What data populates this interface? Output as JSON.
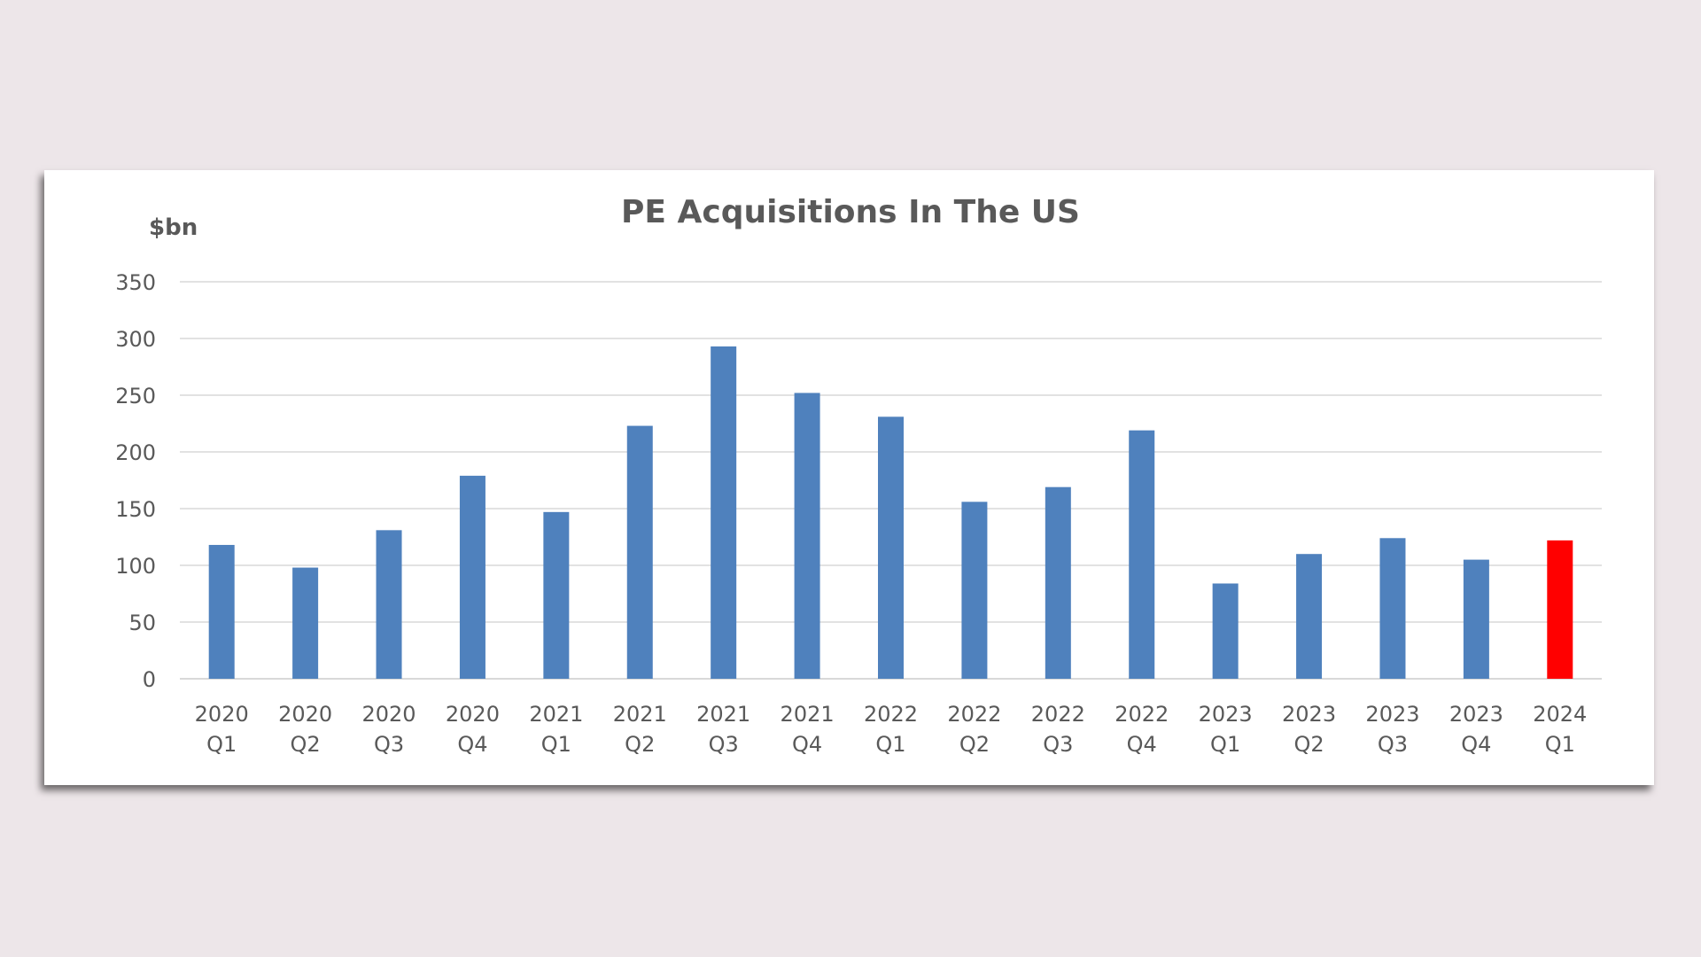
{
  "chart_data": {
    "type": "bar",
    "title": "PE Acquisitions In The US",
    "ylabel": "$bn",
    "xlabel": "",
    "ylim": [
      0,
      350
    ],
    "yticks": [
      0,
      50,
      100,
      150,
      200,
      250,
      300,
      350
    ],
    "grid": true,
    "categories": [
      "2020 Q1",
      "2020 Q2",
      "2020 Q3",
      "2020 Q4",
      "2021 Q1",
      "2021 Q2",
      "2021 Q3",
      "2021 Q4",
      "2022 Q1",
      "2022 Q2",
      "2022 Q3",
      "2022 Q4",
      "2023 Q1",
      "2023 Q2",
      "2023 Q3",
      "2023 Q4",
      "2024 Q1"
    ],
    "values": [
      118,
      98,
      131,
      179,
      147,
      223,
      293,
      252,
      231,
      156,
      169,
      219,
      84,
      110,
      124,
      105,
      122
    ],
    "colors": {
      "bar": "#4f81bd",
      "highlight": "#ff0000",
      "grid": "#d9d9d9",
      "text": "#595959"
    },
    "highlight_index": 16
  }
}
